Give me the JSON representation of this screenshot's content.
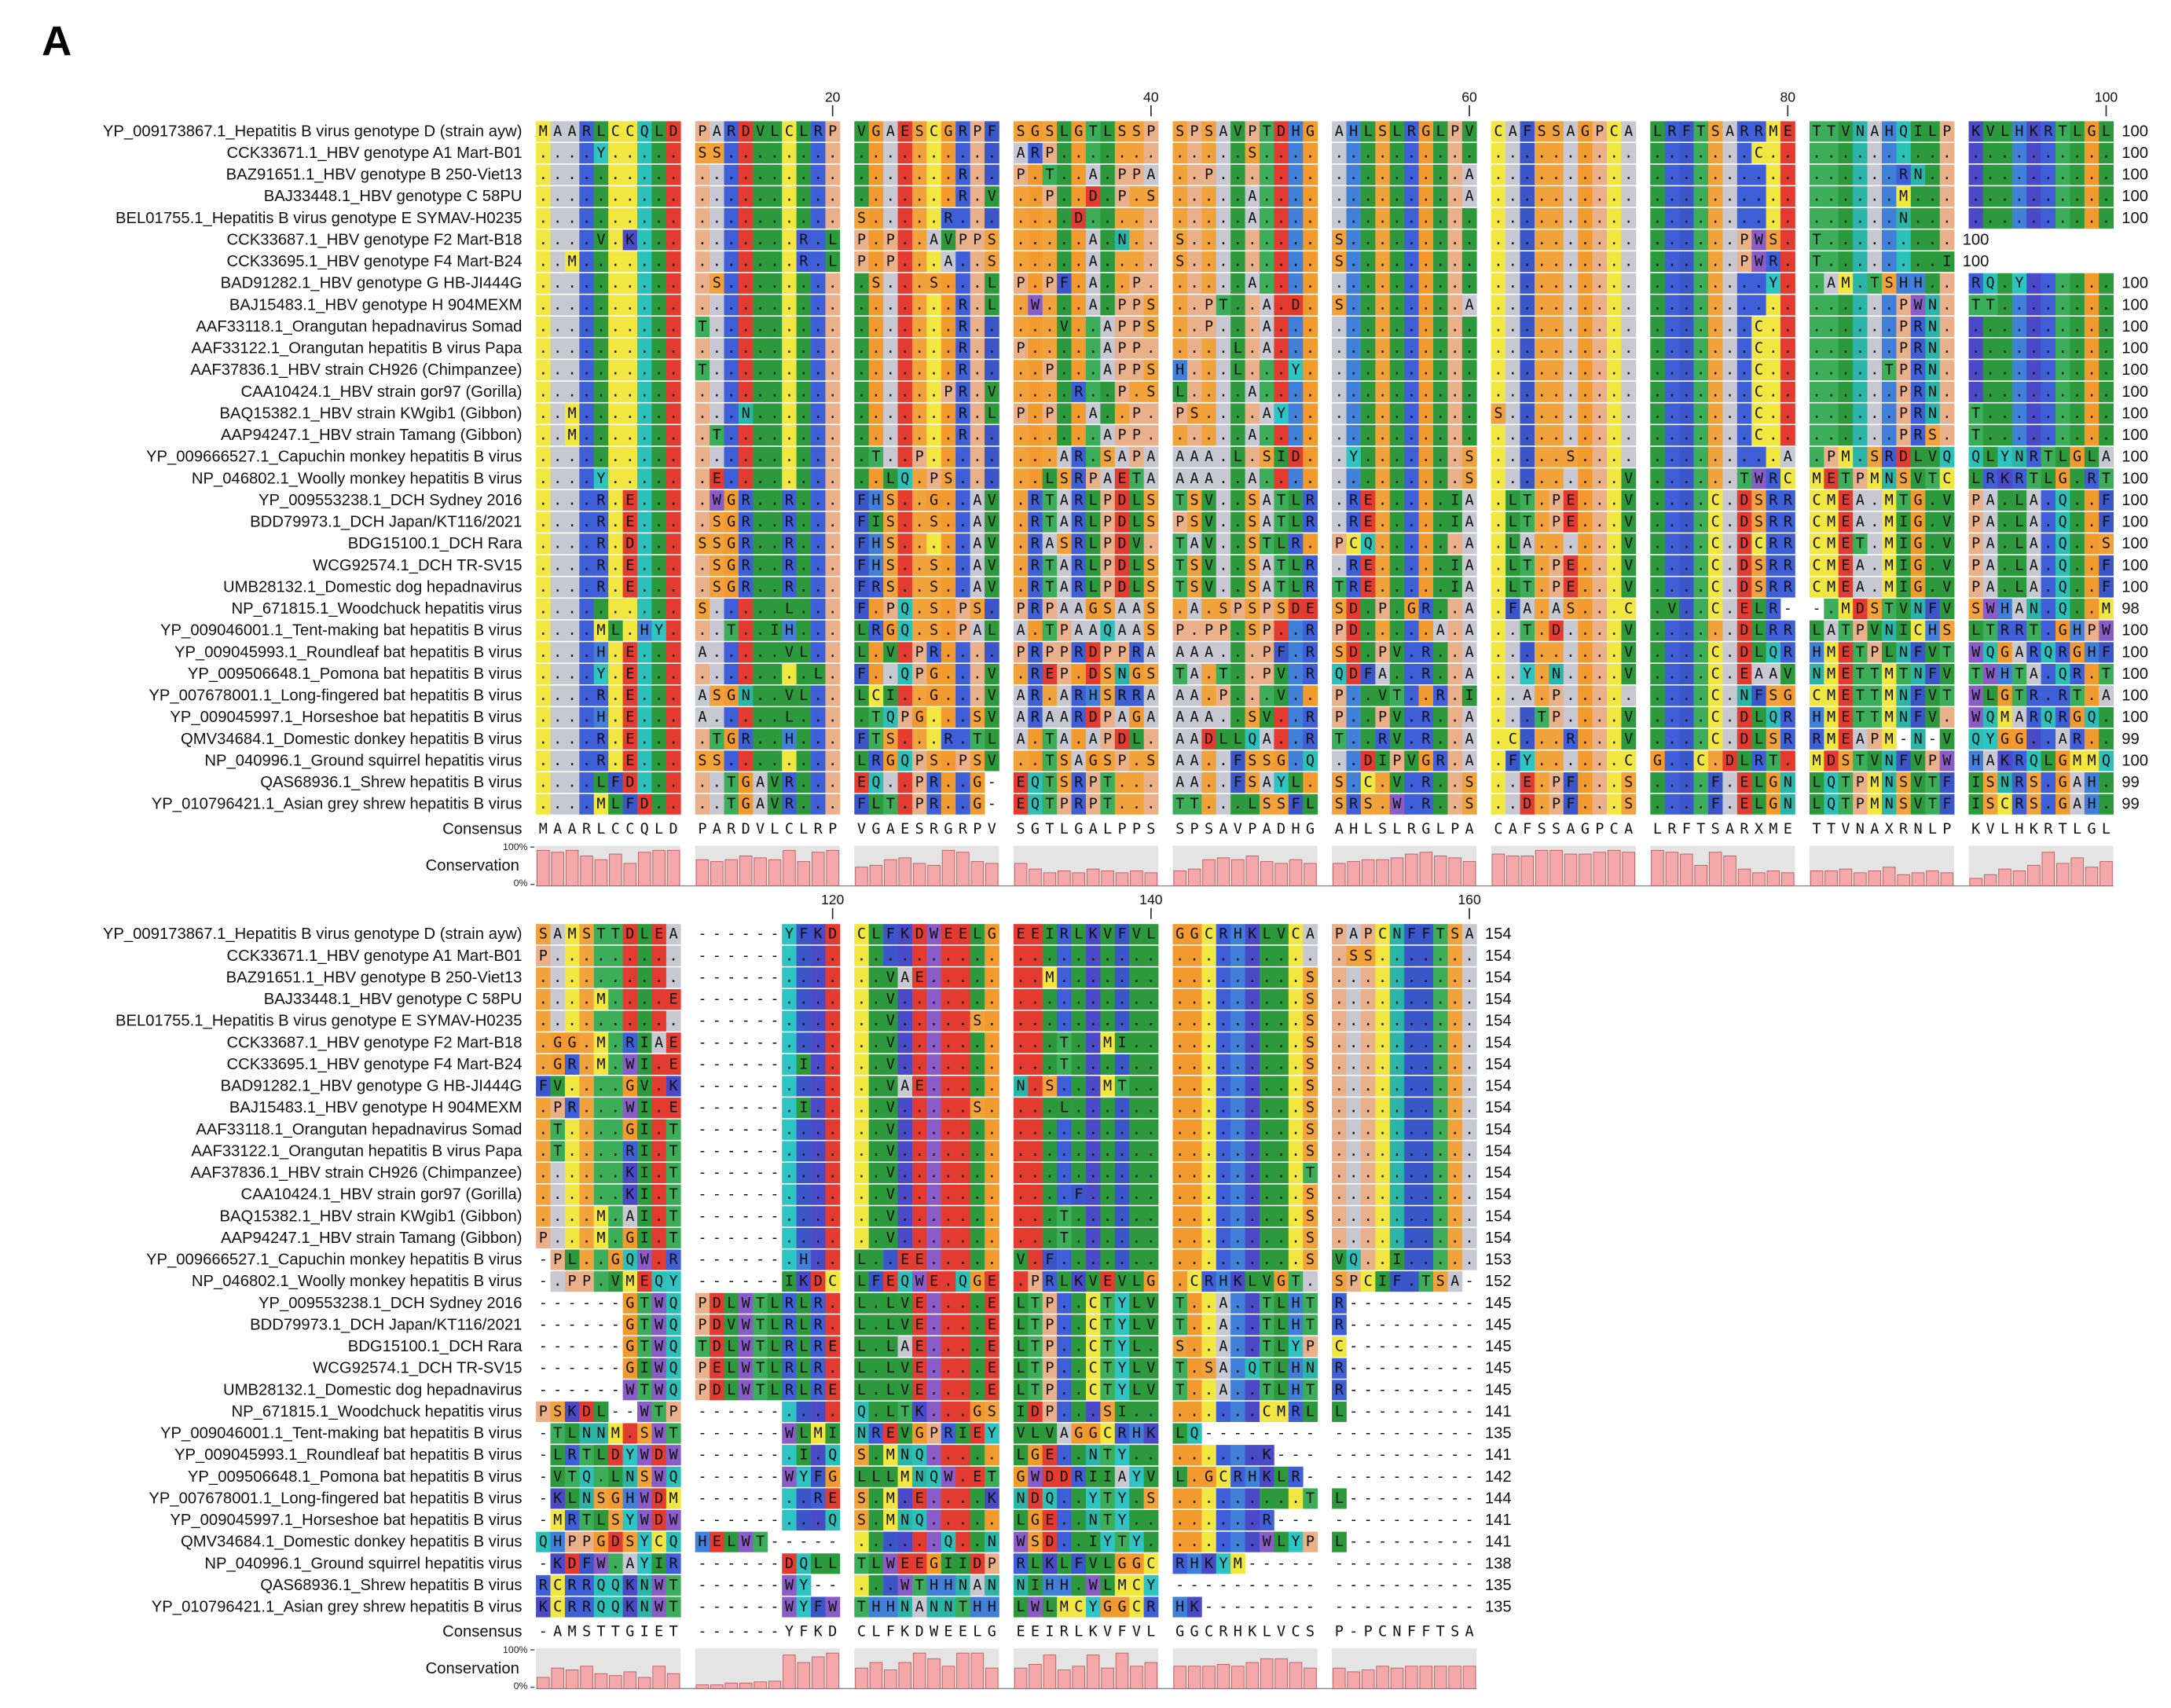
{
  "panel_label": "A",
  "consensus_label": "Consensus",
  "conservation_label": "Conservation",
  "conservation_axis": [
    {
      "value": 100,
      "label": "100%"
    },
    {
      "value": 0,
      "label": "0%"
    }
  ],
  "residue_colors": {
    "A": "#c8c8d2",
    "R": "#3f5fd8",
    "K": "#4a4ac8",
    "H": "#4080d8",
    "D": "#e33b2f",
    "E": "#e33b2f",
    "N": "#2bb5a8",
    "Q": "#2bc0b8",
    "S": "#f2a23a",
    "T": "#3cae5a",
    "G": "#f29a2e",
    "P": "#eab08a",
    "C": "#f2e640",
    "M": "#f2e640",
    "L": "#2c9a3c",
    "I": "#2c9a3c",
    "V": "#2c9a3c",
    "F": "#3a56c8",
    "W": "#8a5cc8",
    "Y": "#2ec4c4",
    "X": "#d0d0d0"
  },
  "sequences": [
    "YP_009173867.1_Hepatitis B virus genotype D (strain ayw)",
    "CCK33671.1_HBV genotype A1 Mart-B01",
    "BAZ91651.1_HBV genotype B 250-Viet13",
    "BAJ33448.1_HBV genotype C 58PU",
    "BEL01755.1_Hepatitis B virus genotype E SYMAV-H0235",
    "CCK33687.1_HBV genotype F2 Mart-B18",
    "CCK33695.1_HBV genotype F4 Mart-B24",
    "BAD91282.1_HBV genotype G HB-JI444G",
    "BAJ15483.1_HBV genotype H 904MEXM",
    "AAF33118.1_Orangutan hepadnavirus Somad",
    "AAF33122.1_Orangutan hepatitis B virus Papa",
    "AAF37836.1_HBV strain CH926 (Chimpanzee)",
    "CAA10424.1_HBV strain gor97 (Gorilla)",
    "BAQ15382.1_HBV strain KWgib1 (Gibbon)",
    "AAP94247.1_HBV strain Tamang (Gibbon)",
    "YP_009666527.1_Capuchin monkey hepatitis B virus",
    "NP_046802.1_Woolly monkey hepatitis B virus",
    "YP_009553238.1_DCH Sydney 2016",
    "BDD79973.1_DCH Japan/KT116/2021",
    "BDG15100.1_DCH Rara",
    "WCG92574.1_DCH TR-SV15",
    "UMB28132.1_Domestic dog hepadnavirus",
    "NP_671815.1_Woodchuck hepatitis virus",
    "YP_009046001.1_Tent-making bat hepatitis B virus",
    "YP_009045993.1_Roundleaf bat hepatitis B virus",
    "YP_009506648.1_Pomona bat hepatitis B virus",
    "YP_007678001.1_Long-fingered bat hepatitis B virus",
    "YP_009045997.1_Horseshoe bat hepatitis B virus",
    "QMV34684.1_Domestic donkey hepatitis B virus",
    "NP_040996.1_Ground squirrel hepatitis virus",
    "QAS68936.1_Shrew hepatitis B virus",
    "YP_010796421.1_Asian grey shrew hepatitis B virus"
  ],
  "blocks": [
    {
      "ticks": [
        20,
        40,
        60,
        80,
        100
      ],
      "rows": [
        "MAARLCCQLD PARDVLCLRP VGAESCGRPF SGSLGTLSSP SPSAVPTDHG AHLSLRGLPV CAFSSAGPCA LRFTSARRME TTVNAHQILP KVLHKRTLGL",
        "....Y..... SS........ .......... ARP....... .....S.... .......... .......... .......C.. .......... ..........",
        ".......... .......... .......R.. P.T..A.PPA ..P....... .........A .......... .......... ......RN.. ..........",
        ".......... .......... .......R.V ..P..D.P.S .....A.... .........A .......... .......... ......M... ..........",
        ".......... .......... S.....R... ....D..... .....A.... .......... .......... .......... ......N... ..........",
        "....V.K... .......R.L P.P..AVPPS .....A.N.. S......... S......... .......... ......PWS. T.........",
        "..M....... .......R.L P.P...A..S .....A.... S......... S......... .......... ......PWR. T........I",
        ".......... .S........ .S...S...L P.PF.A..P. .....A.... .......... .......... ........Y. .AM.TSHH.. RQ.Y......",
        ".......... .......... .......R.L .W...A.PPS ..PT..A.D. S........A .......... .......... ......PWN. TT........",
        ".......... T......... .......R.. ...V..APPS ..P...A... .......... .......... .......C.. ......PRN. ..........",
        ".......... .......... .......R.. P.....APP. ....L.A... .......... .......... .......C.. ......PRN. ..........",
        ".......... T......... .......R.. ..P...APPS H...L...Y. .......... .......... .......C.. .....TPRN. ..........",
        ".......... .......... ......PR.V ....R..P.S L....A.... .......... .......... .......C.. ......PRN. ..........",
        "..M....... ...N...... .......R.L P.P..A..P. PS....AY.. .......... S......... .......C.. ......PRN. T.........",
        "..M....... .T........ .......R.. ......APP. .....A.... .......... .......... .......C.. ......PRS. T.........",
        ".......... .......... .T..P..... ...AR.SAPA AAA.L.SID. .Y.......S .....S.... .........A .PM.SRDLVQ QLYNRTLGLA",
        "....Y..... .E........ ..LQ.PS... ..LSRPAETA AAA..A.... .........S .........V ......TWRC METPMNSVTC LRKRTLG.RT",
        "....R.E... .WGR..R... FHS..G..AV .RTARLPDLS TSV..SATLR .RE.....IA .LT.PE...V ....C.DSRR CMEA.MTG.V PA.LA.Q..F",
        "....R.E... .SGR..R... FIS..S..AV .RTARLPDLS PSV..SATLR .RE.....IA .LT.PE...V ....C.DSRR CMEA.MIG.V PA.LA.Q..F",
        "....R.D... SSGR..R... FHS.....AV .RASRLPDV. TAV..STLR. PCQ......A .LA......V ....C.DCRR CMET.MIG.V PA.LA.Q..S",
        "....R.E... .SGR..R... FHS..S..AV .RTARLPDLS TSV..SATLR .RE.....IA .LT.PE...V ....C.DSRR CMEA.MIG.V PA.LA.Q..F",
        "....R.E... .SGR..R... FRS..S..AV .RTARLPDLS TSV..SATLR TRE.....IA .LT.PE...V ....C.DSRR CMEA.MIG.V PA.LA.Q..F",
        ".......... S.....L... F.PQ.S.PS. PRPAAGSAAS .A.SPSPSDE SD.P.GR..A .FA.AS...C .V..C.ELR- -.MDSTVNFV SWHAN.Q..M",
        "....ML.HY. ..T..IH... LRGQ.S.PAL A.TPAAQAAS P.PP.SP..R PD.....A.A ..T.D....V ......DLRR LATPVNICHS LTRRT.GHPW",
        "....H.E... A.....VL.. L.V.PR.... PRPPRDPPRA AAA...PF.R SD.PV.R..A .........V ....C.DLQR HMETPLNFVT WQGARQRGHF",
        "....Y.E... ........L. F..QPG...V .REP.DSNGS TA.T..PV.R QDFA..R..A ..Y.N....V ....C.EAAV NMETTMTNFV TWHTA.QR.T",
        "....R.E... ASGN..VL.. LCI..G...V AR.ARHSRRA AA.P...V.. P..VT..R.I ..A.P..... ....C.NFSG CMETTMNFVT WLGTR.RT.A",
        "....H.E... A.....L... .TQPG...SV ARAARDPAGA AAA..SV..R P..PV.R..A ...TP....V ....C.DLQR HMETTMNFV. WQMARQRGQ.",
        "....R.E... .TGR..H... FTS...R.TL A.TA.APDL. AADLLQA..R T..RV.R..A .C...R...V ....C.DLSR RMEAPM-N-V QYGG..AR..",
        "....R.E... SS........ LRGQPS.PSV ..TSAGSP.S AA..FSSG.Q ..DIPVGR.A .FY......C G..C.DLRT. MDSTVNFVPW HAKRQLGMMQ",
        "....LFD... ..TGAVR... EQ..PR..G- EQTSRPT... AA..FSAYL. S.C.V.R..S ..E.PF...S ....F.ELGN LQTPMNSVTF ISNRS.GAH.",
        "....MLFD.. ..TGAVR... FLT.PR..G- EQTPRPT... TT...LSSFL SRS.W.R..S ..D.PF...S ....F.ELGN LQTPMNSVTF ISCRS.GAH."
      ],
      "ends": [
        100,
        100,
        100,
        100,
        100,
        100,
        100,
        100,
        100,
        100,
        100,
        100,
        100,
        100,
        100,
        100,
        100,
        100,
        100,
        100,
        100,
        100,
        98,
        100,
        100,
        100,
        100,
        100,
        99,
        100,
        99,
        99
      ],
      "consensus": "MAARLCCQLD PARDVLCLRP VGAESRGRPV SGTLGALPPS SPSAVPADHG AHLSLRGLPA CAFSSAGPCA LRFTSARXME TTVNAXRNLP KVLHKRTLGL",
      "conservation": [
        95,
        90,
        95,
        80,
        70,
        85,
        60,
        90,
        95,
        95,
        70,
        65,
        70,
        80,
        75,
        70,
        95,
        65,
        90,
        95,
        50,
        55,
        70,
        75,
        60,
        55,
        95,
        90,
        65,
        60,
        60,
        45,
        35,
        40,
        35,
        45,
        40,
        35,
        40,
        35,
        40,
        45,
        70,
        75,
        70,
        80,
        65,
        60,
        70,
        60,
        60,
        65,
        70,
        70,
        75,
        85,
        90,
        80,
        75,
        65,
        85,
        80,
        80,
        95,
        95,
        85,
        85,
        90,
        95,
        90,
        95,
        90,
        85,
        55,
        90,
        80,
        45,
        35,
        40,
        35,
        40,
        40,
        45,
        35,
        40,
        50,
        30,
        35,
        40,
        35,
        20,
        30,
        45,
        40,
        55,
        90,
        60,
        75,
        50,
        65
      ]
    },
    {
      "ticks": [
        120,
        140,
        160
      ],
      "rows": [
        "SAMSTTDLEA ------YFKD CLFKDWEELG EEIRLKVFVL GGCRHKLVCA PAPCNFFTSA",
        "P......... ------.... .......... .......... .......... .SS.......",
        ".......... ------.... ..VAE..... ..M....... .........S ..........",
        "....M....E ------.... ..V....... .......... .........S ..........",
        ".......... ------.... ..V.....S. .......... .........S ..........",
        ".GG.M.RIAE ------.... ..V....... ...T..MI.. .........S ..........",
        ".GR.M.WI.E ------.I.. ..V....... ...T...... .........S ..........",
        "FV....GV.K ------.... ..VAE..... N.S...MT.. .........S ..........",
        ".PR...WI.E ------.I.. ..V.....S. ...L...... .........S ..........",
        ".T....GI.T ------.... ..V....... .......... .........S ..........",
        ".T....RI.T ------.... ..V....... .......... .........S ..........",
        "......KI.T ------.... ..V....... .......... .........T ..........",
        "......KI.T ------.... ..V....... ....F..... .........S ..........",
        "....M.AI.T ------.... ..V....... ...T...... .........S ..........",
        "P...M.GI.T ------.... ..V....... ...T...... .........S ..........",
        "-PL..GQW.R ------.H.. L..EE..... V.F....... .........S VQ..I.....",
        "-.PP.VMEQY ------IKDC LFEQWE.QGE .PRLKVEVLG .CRHKLVGT. SPCIF.TSA-",
        "------GTWQ PDLWTLRLR. L.LVE....E LTP..CTYLV T..A..TLHT R---------",
        "------GTWQ PDVWTLRLR. L.LVE....E LTP..CTYLV T..A..TLHT R---------",
        "------GTWQ TDLWTLRLRE L.LAE....E LTP..CTYL. S..A..TLYP C---------",
        "------GIWQ PELWTLRLR. L.LVE....E LTP..CTYLV T.SA.QTLHN R---------",
        "------WTWQ PDLWTLRLRE L.LVE....E LTP..CTYLV T..A..TLHT R---------",
        "PSKDL--WTP ------.... Q.LTK...GS IDP...SI.. ......CMRL L---------",
        "-TLNNM.SWT ------WLMI NREVGPRIEY VLVAGGCRHK LQ-------- ----------",
        "-LRTLDYWDW ------.I.Q S.MNQ..... LGE..NTY.. ......K--- ----------",
        "-VTQ.LNSWQ ------WYFG LLLMNQW.ET GWDDRIIAYV L.GCRHKLR- ----------",
        "-KLNSGHWDM ------..RE S.M.E....K NDQ..YTY.S .........T L---------",
        "-MRTLSYWDW ------...Q S.MNQ..... LGE..NTY.. ......R--- ----------",
        "QHPPGDSYCQ HELWT----- ......Q..N WSD..IYTY. ......WLYP L---------",
        "-KDFW.AYIR ------DQLL TLWEEGIIDP RLKLFVLGGC RHKYM----- ----------",
        "RCRRQQKNWT ------WY-- ...WTHHNAN NIHH.WLMCY ---------- ----------",
        "KCRRQQKNWT ------WYFW THHNANNTHH LWLMCYGGCR HK-------- ----------"
      ],
      "ends": [
        154,
        154,
        154,
        154,
        154,
        154,
        154,
        154,
        154,
        154,
        154,
        154,
        154,
        154,
        154,
        153,
        152,
        145,
        145,
        145,
        145,
        145,
        141,
        135,
        141,
        142,
        144,
        141,
        141,
        138,
        135,
        135
      ],
      "consensus": "-AMSTTGIET ------YFKD CLFKDWEELG EEIRLKVFVL GGCRHKLVCS P-PCNFFTSA",
      "conservation": [
        30,
        55,
        50,
        60,
        40,
        35,
        45,
        30,
        60,
        40,
        10,
        10,
        15,
        15,
        18,
        20,
        90,
        70,
        85,
        95,
        55,
        70,
        50,
        70,
        95,
        80,
        60,
        95,
        95,
        55,
        55,
        65,
        90,
        50,
        60,
        90,
        55,
        95,
        60,
        70,
        60,
        60,
        60,
        65,
        60,
        70,
        80,
        80,
        70,
        55,
        55,
        45,
        50,
        60,
        55,
        60,
        60,
        60,
        60,
        60
      ]
    }
  ]
}
